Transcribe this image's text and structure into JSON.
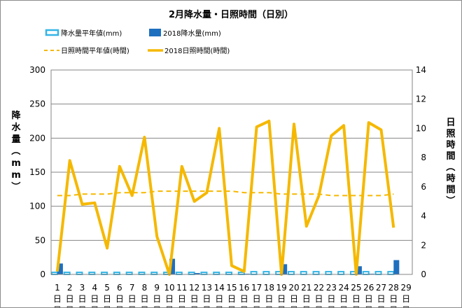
{
  "chart_data": {
    "type": "bar",
    "title": "2月降水量・日照時間（日別）",
    "ylabel": "降水量（mm）",
    "y2label": "日照時間（時間）",
    "ylim": [
      0,
      300
    ],
    "y2lim": [
      0,
      14
    ],
    "yticks": [
      0,
      50,
      100,
      150,
      200,
      250,
      300
    ],
    "y2ticks": [
      0,
      2,
      4,
      6,
      8,
      10,
      12,
      14
    ],
    "grid": true,
    "legend_position": "top",
    "day_suffix": "日",
    "categories": [
      "1",
      "2",
      "3",
      "4",
      "5",
      "6",
      "7",
      "8",
      "9",
      "10",
      "11",
      "12",
      "13",
      "14",
      "15",
      "16",
      "17",
      "18",
      "19",
      "20",
      "21",
      "22",
      "23",
      "24",
      "25",
      "26",
      "27",
      "28",
      "29"
    ],
    "series": [
      {
        "name": "降水量平年値(mm)",
        "type": "bar",
        "axis": "left",
        "style": "outline",
        "color": "#33b5e5",
        "values": [
          3,
          3,
          3,
          3,
          3,
          3,
          3,
          3,
          3,
          3,
          3,
          3,
          3,
          3,
          3,
          3,
          4,
          4,
          4,
          4,
          4,
          4,
          4,
          4,
          4,
          4,
          4,
          4,
          null
        ]
      },
      {
        "name": "2018降水量(mm)",
        "type": "bar",
        "axis": "left",
        "style": "fill",
        "color": "#1f6fbf",
        "values": [
          16,
          0,
          0,
          0,
          0,
          0,
          0,
          0,
          0,
          23,
          0,
          2,
          0,
          0,
          0,
          1,
          0,
          0,
          15,
          0,
          0,
          0,
          0,
          0,
          12,
          1,
          0,
          21,
          null
        ]
      },
      {
        "name": "日照時間平年値(時間)",
        "type": "line",
        "axis": "right",
        "style": "dashed",
        "color": "#f5b800",
        "values": [
          5.4,
          5.4,
          5.5,
          5.5,
          5.5,
          5.6,
          5.6,
          5.6,
          5.7,
          5.7,
          5.7,
          5.7,
          5.7,
          5.7,
          5.7,
          5.6,
          5.6,
          5.6,
          5.5,
          5.5,
          5.5,
          5.5,
          5.4,
          5.4,
          5.4,
          5.4,
          5.4,
          5.5,
          null
        ]
      },
      {
        "name": "2018日照時間(時間)",
        "type": "line",
        "axis": "right",
        "style": "solid",
        "color": "#f5b800",
        "values": [
          0.2,
          7.8,
          4.8,
          4.9,
          1.8,
          7.4,
          5.4,
          9.4,
          2.6,
          0,
          7.4,
          5.0,
          5.6,
          10,
          0.6,
          0.2,
          10.1,
          10.5,
          0,
          10.3,
          3.3,
          5.4,
          9.5,
          10.2,
          0,
          10.4,
          9.9,
          3.2,
          null
        ]
      }
    ]
  }
}
